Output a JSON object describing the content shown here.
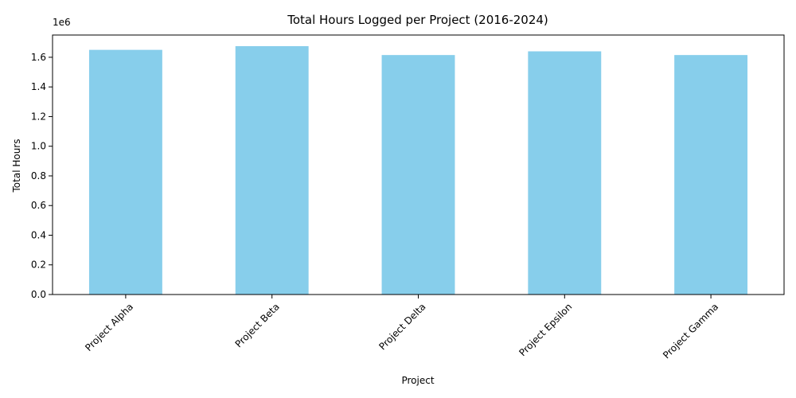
{
  "colors": {
    "bar": "#87ceeb",
    "axis": "#000000",
    "background": "#ffffff"
  },
  "chart_data": {
    "type": "bar",
    "title": "Total Hours Logged per Project (2016-2024)",
    "xlabel": "Project",
    "ylabel": "Total Hours",
    "offset_text": "1e6",
    "categories": [
      "Project Alpha",
      "Project Beta",
      "Project Delta",
      "Project Epsilon",
      "Project Gamma"
    ],
    "values": [
      1650000,
      1675000,
      1615000,
      1640000,
      1615000
    ],
    "ylim": [
      0,
      1750000
    ],
    "yticks": [
      0,
      200000,
      400000,
      600000,
      800000,
      1000000,
      1200000,
      1400000,
      1600000
    ],
    "ytick_labels": [
      "0.0",
      "0.2",
      "0.4",
      "0.6",
      "0.8",
      "1.0",
      "1.2",
      "1.4",
      "1.6"
    ],
    "grid": false,
    "legend": "none"
  }
}
